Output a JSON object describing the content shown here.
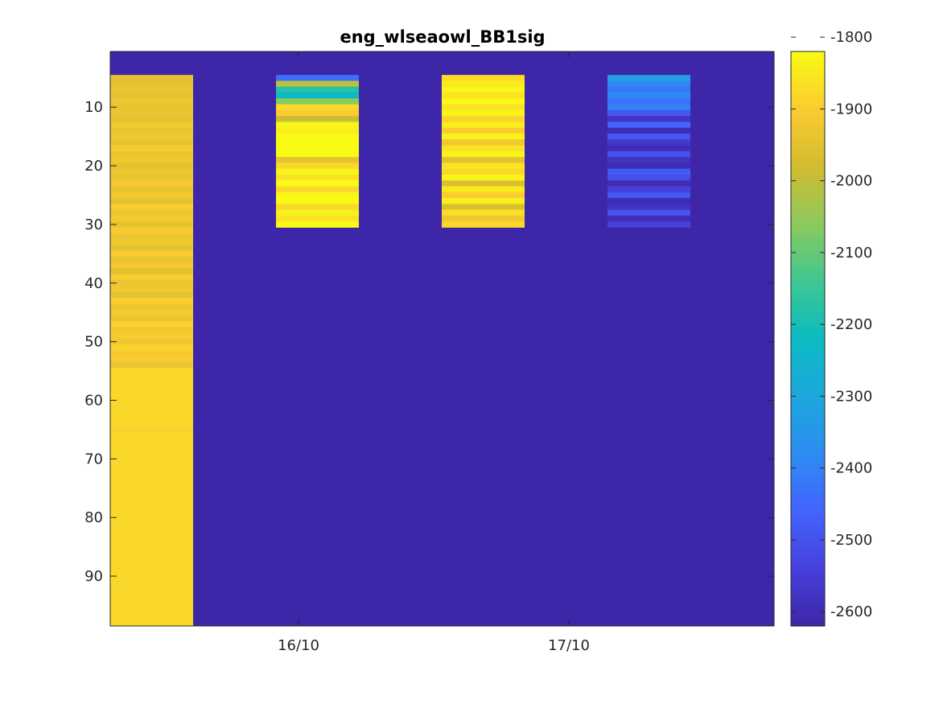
{
  "chart_data": {
    "type": "heatmap",
    "title": "eng_wlseaowl_BB1sig",
    "xlabel": "",
    "ylabel": "",
    "x_tick_labels": [
      "16/10",
      "17/10"
    ],
    "y_ticks": [
      10,
      20,
      30,
      40,
      50,
      60,
      70,
      80,
      90
    ],
    "y_range": [
      0.5,
      98.5
    ],
    "y_reversed": true,
    "grid": false,
    "colormap": "parula",
    "fill_value": -2620,
    "colorbar": {
      "ticks": [
        -1800,
        -1900,
        -2000,
        -2100,
        -2200,
        -2300,
        -2400,
        -2500,
        -2600
      ],
      "range": [
        -2620,
        -1820
      ],
      "placement": "right"
    },
    "columns": [
      {
        "start": 5,
        "end": 98,
        "values": [
          -1945,
          -1950,
          -1935,
          -1950,
          -1925,
          -1940,
          -1930,
          -1950,
          -1915,
          -1930,
          -1920,
          -1945,
          -1910,
          -1935,
          -1920,
          -1945,
          -1925,
          -1935,
          -1910,
          -1940,
          -1920,
          -1945,
          -1900,
          -1930,
          -1915,
          -1940,
          -1905,
          -1930,
          -1920,
          -1945,
          -1905,
          -1935,
          -1910,
          -1950,
          -1900,
          -1930,
          -1920,
          -1945,
          -1895,
          -1925,
          -1910,
          -1935,
          -1895,
          -1920,
          -1905,
          -1925,
          -1890,
          -1910,
          -1900,
          -1930,
          -1880,
          -1880,
          -1880,
          -1880,
          -1880,
          -1880,
          -1880,
          -1880,
          -1880,
          -1880,
          -1890,
          -1880,
          -1880,
          -1880,
          -1880,
          -1880,
          -1880,
          -1880,
          -1880,
          -1880,
          -1880,
          -1880,
          -1880,
          -1880,
          -1880,
          -1880,
          -1880,
          -1880,
          -1880,
          -1880,
          -1880,
          -1880,
          -1880,
          -1880,
          -1880,
          -1880,
          -1880,
          -1880,
          -1880,
          -1880,
          -1880,
          -1880,
          -1880,
          -1880
        ]
      },
      {
        "start": 5,
        "end": 30,
        "values": [
          -2440,
          -2010,
          -2180,
          -2230,
          -2060,
          -1880,
          -1900,
          -1990,
          -1830,
          -1840,
          -1820,
          -1820,
          -1820,
          -1820,
          -1940,
          -1880,
          -1830,
          -1860,
          -1820,
          -1880,
          -1830,
          -1820,
          -1880,
          -1840,
          -1860,
          -1820
        ]
      },
      {
        "start": 5,
        "end": 30,
        "values": [
          -1870,
          -1850,
          -1830,
          -1860,
          -1820,
          -1860,
          -1830,
          -1890,
          -1840,
          -1900,
          -1830,
          -1920,
          -1860,
          -1830,
          -1950,
          -1860,
          -1880,
          -1830,
          -1960,
          -1850,
          -1900,
          -1840,
          -1960,
          -1870,
          -1920,
          -1880
        ]
      },
      {
        "start": 5,
        "end": 30,
        "values": [
          -2330,
          -2380,
          -2420,
          -2380,
          -2430,
          -2400,
          -2490,
          -2580,
          -2460,
          -2600,
          -2490,
          -2570,
          -2600,
          -2500,
          -2580,
          -2600,
          -2480,
          -2510,
          -2600,
          -2540,
          -2490,
          -2600,
          -2580,
          -2500,
          -2600,
          -2540
        ]
      }
    ]
  }
}
